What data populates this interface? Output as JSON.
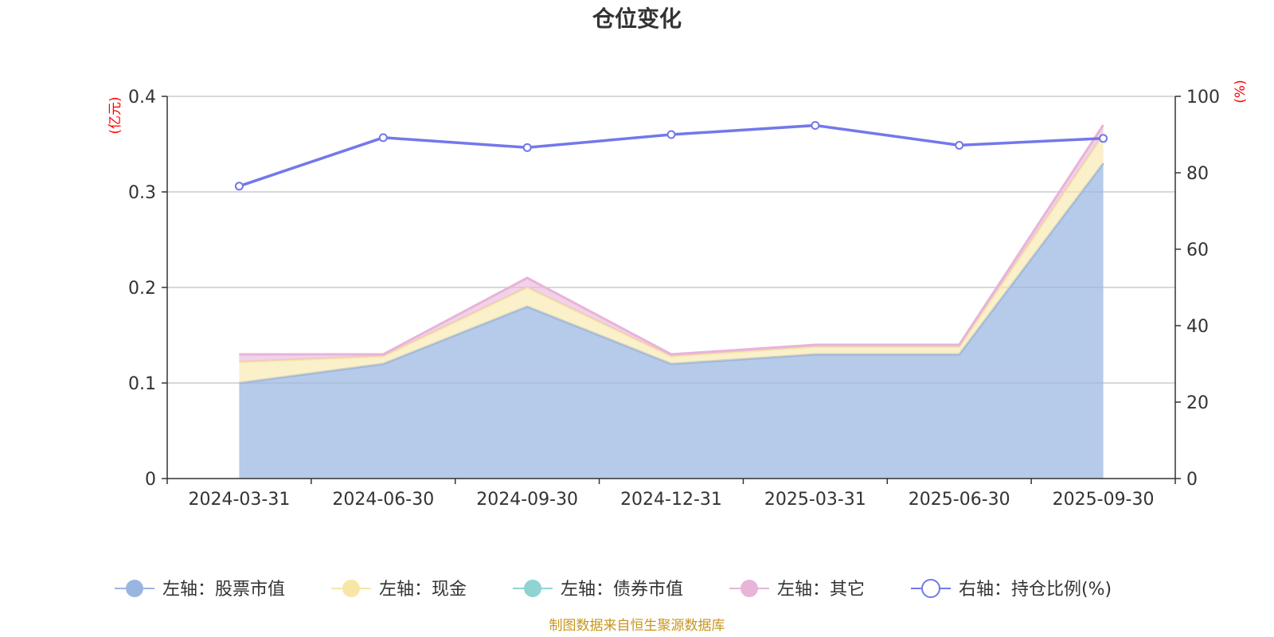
{
  "chart_data": {
    "type": "area",
    "title": "仓位变化",
    "categories": [
      "2024-03-31",
      "2024-06-30",
      "2024-09-30",
      "2024-12-31",
      "2025-03-31",
      "2025-06-30",
      "2025-09-30"
    ],
    "left_axis": {
      "unit": "(亿元)",
      "ylim": [
        0,
        0.4
      ],
      "ticks": [
        "0",
        "0.1",
        "0.2",
        "0.3",
        "0.4"
      ]
    },
    "right_axis": {
      "unit": "(%)",
      "ylim": [
        0,
        100
      ],
      "ticks": [
        "0",
        "20",
        "40",
        "60",
        "80",
        "100"
      ]
    },
    "series": [
      {
        "name": "左轴：股票市值",
        "type": "area",
        "axis": "left",
        "stack": true,
        "color": "#9ab5e0",
        "values": [
          0.1,
          0.12,
          0.18,
          0.12,
          0.13,
          0.13,
          0.33
        ]
      },
      {
        "name": "左轴：现金",
        "type": "area",
        "axis": "left",
        "stack": true,
        "color": "#f7e6a6",
        "values": [
          0.022,
          0.008,
          0.02,
          0.008,
          0.008,
          0.008,
          0.03
        ]
      },
      {
        "name": "左轴：债券市值",
        "type": "area",
        "axis": "left",
        "stack": true,
        "color": "#8fd3d3",
        "values": [
          0,
          0,
          0,
          0,
          0,
          0,
          0
        ]
      },
      {
        "name": "左轴：其它",
        "type": "area",
        "axis": "left",
        "stack": true,
        "color": "#e8b4d8",
        "values": [
          0.008,
          0.002,
          0.01,
          0.002,
          0.002,
          0.002,
          0.01
        ]
      },
      {
        "name": "右轴：持仓比例(%)",
        "type": "line",
        "axis": "right",
        "color": "#7378ea",
        "values": [
          76.5,
          89.2,
          86.6,
          90.0,
          92.4,
          87.2,
          89.0
        ]
      }
    ],
    "grid": true,
    "legend": "bottom"
  },
  "source_note": "制图数据来自恒生聚源数据库"
}
